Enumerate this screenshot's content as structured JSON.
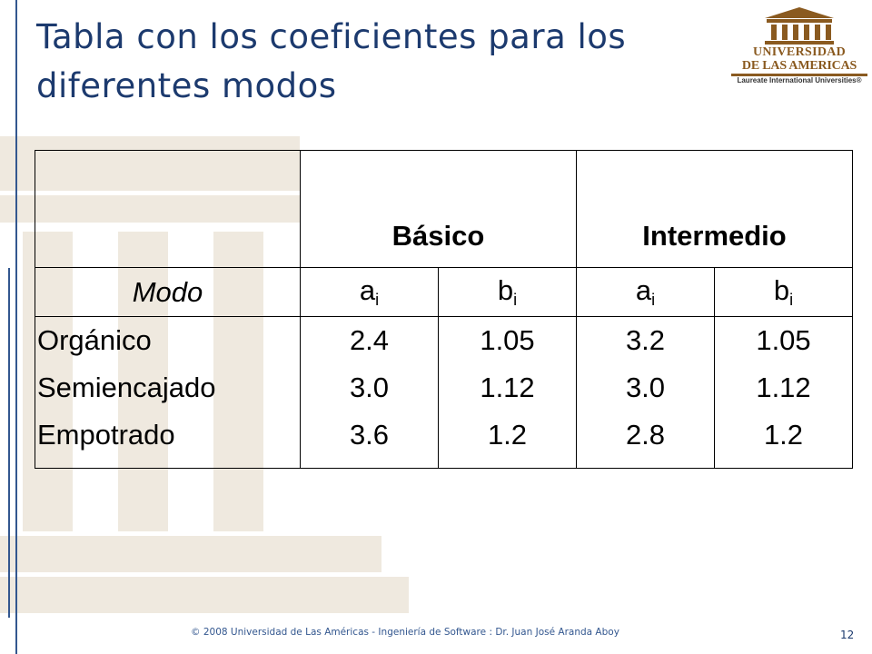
{
  "slide": {
    "title": "Tabla con los coeficientes para los diferentes modos",
    "page_number": "12",
    "footer": "© 2008 Universidad de  Las Américas  - Ingeniería de Software : Dr. Juan José Aranda Aboy"
  },
  "logo": {
    "line1": "UNIVERSIDAD",
    "line2": "DE LAS AMERICAS",
    "line3": "Laureate International Universities®"
  },
  "table": {
    "group_headers": [
      "Básico",
      "Intermedio"
    ],
    "sub_headers": {
      "mode": "Modo",
      "cols": [
        {
          "base": "a",
          "sub": "i"
        },
        {
          "base": "b",
          "sub": "i"
        },
        {
          "base": "a",
          "sub": "i"
        },
        {
          "base": "b",
          "sub": "i"
        }
      ]
    },
    "modes": [
      "Orgánico",
      "Semiencajado",
      "Empotrado"
    ],
    "basico_a": [
      "2.4",
      "3.0",
      "3.6"
    ],
    "basico_b": [
      "1.05",
      "1.12",
      "1.2"
    ],
    "intermedio_a": [
      "3.2",
      "3.0",
      "2.8"
    ],
    "intermedio_b": [
      "1.05",
      "1.12",
      "1.2"
    ]
  },
  "colors": {
    "title": "#1c3a6e",
    "accent_line": "#33578f",
    "logo_brand": "#8a5a20"
  }
}
